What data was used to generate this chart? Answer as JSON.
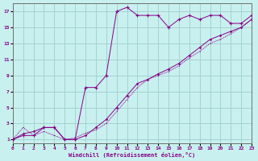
{
  "background_color": "#c8f0ee",
  "grid_color": "#9ecece",
  "line_color": "#880088",
  "xlim": [
    0,
    23
  ],
  "ylim": [
    0.5,
    18
  ],
  "xticks": [
    0,
    1,
    2,
    3,
    4,
    5,
    6,
    7,
    8,
    9,
    10,
    11,
    12,
    13,
    14,
    15,
    16,
    17,
    18,
    19,
    20,
    21,
    22,
    23
  ],
  "yticks": [
    1,
    3,
    5,
    7,
    9,
    11,
    13,
    15,
    17
  ],
  "xlabel": "Windchill (Refroidissement éolien,°C)",
  "s1_x": [
    0,
    1,
    2,
    3,
    4,
    5,
    6,
    7,
    8,
    9,
    10,
    11,
    12,
    13,
    14,
    15,
    16,
    17,
    18,
    19,
    20,
    21,
    22,
    23
  ],
  "s1_y": [
    1,
    1.7,
    2.0,
    2.5,
    2.5,
    1.0,
    1.0,
    1.5,
    2.5,
    3.5,
    5.0,
    6.5,
    8.0,
    8.5,
    9.2,
    9.8,
    10.5,
    11.5,
    12.5,
    13.5,
    14.0,
    14.5,
    15.0,
    16.0
  ],
  "s2_x": [
    0,
    1,
    2,
    3,
    4,
    5,
    6,
    7,
    8,
    9,
    10,
    11,
    12,
    13,
    14,
    15,
    16,
    17,
    18,
    19,
    20,
    21,
    22,
    23
  ],
  "s2_y": [
    1,
    2.5,
    1.5,
    2.0,
    1.5,
    1.0,
    1.2,
    1.8,
    2.2,
    3.0,
    4.5,
    6.0,
    7.5,
    8.5,
    9.0,
    9.5,
    10.2,
    11.2,
    12.0,
    13.0,
    13.5,
    14.2,
    15.0,
    16.0
  ],
  "s3_x": [
    0,
    1,
    2,
    3,
    4,
    5,
    6,
    7,
    8,
    9,
    10,
    11,
    12,
    13,
    14,
    15,
    16,
    17,
    18,
    19,
    20,
    21,
    22,
    23
  ],
  "s3_y": [
    1,
    1.5,
    1.5,
    2.5,
    2.5,
    1.0,
    1.0,
    7.5,
    7.5,
    9.0,
    17.0,
    17.5,
    16.5,
    16.5,
    16.5,
    15.0,
    16.0,
    16.5,
    16.0,
    16.5,
    16.5,
    15.5,
    15.5,
    16.5
  ]
}
